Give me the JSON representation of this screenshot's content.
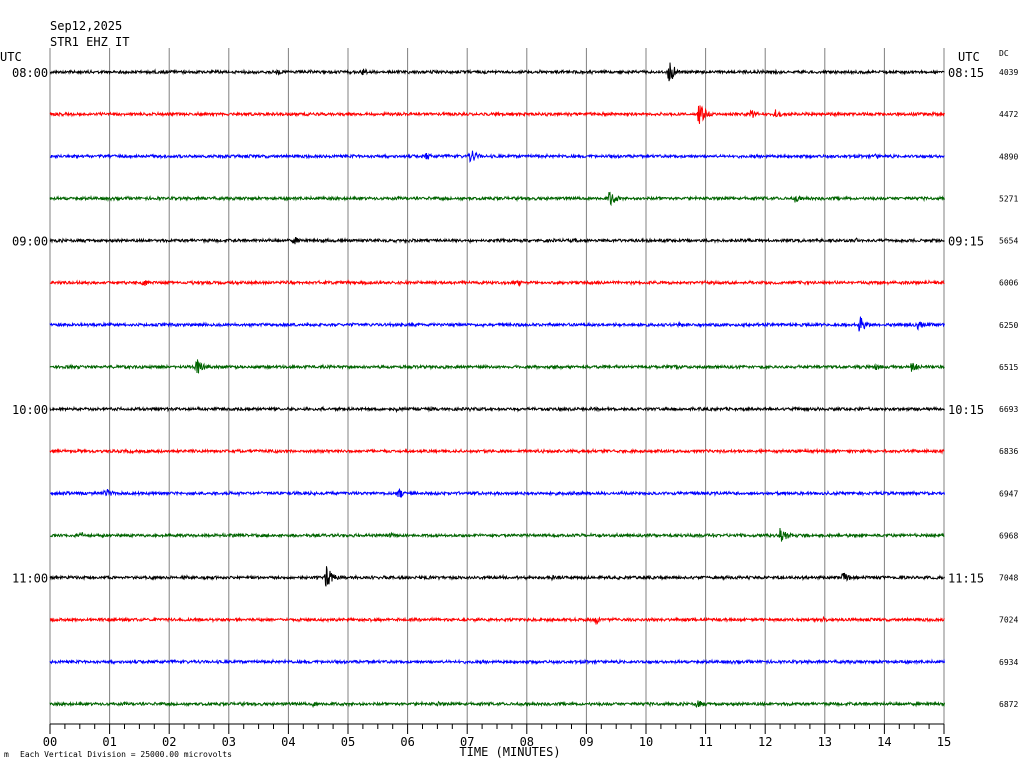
{
  "header": {
    "date": "Sep12,2025",
    "station": "STR1 EHZ IT"
  },
  "left_axis": {
    "zone": "UTC"
  },
  "right_axis": {
    "zone": "UTC",
    "dc_header": "DC"
  },
  "footer": {
    "scale_note": "Each Vertical Division = 25000.00 microvolts"
  },
  "colors": {
    "cycle": [
      "#000000",
      "#ff0000",
      "#0000ff",
      "#006400"
    ],
    "grid": "#808080"
  },
  "chart_data": {
    "type": "line",
    "title": "",
    "xlabel": "TIME (MINUTES)",
    "ylabel": "",
    "xlim": [
      0,
      15
    ],
    "x_ticks": [
      "00",
      "01",
      "02",
      "03",
      "04",
      "05",
      "06",
      "07",
      "08",
      "09",
      "10",
      "11",
      "12",
      "13",
      "14",
      "15"
    ],
    "x_minor_per_major": 4,
    "grid": true,
    "lines": [
      {
        "left": "08:00",
        "right": "08:15",
        "dc": "4039",
        "events": [
          {
            "t": 10.38,
            "a": 12
          },
          {
            "t": 5.25,
            "a": 4
          },
          {
            "t": 3.8,
            "a": 3
          }
        ]
      },
      {
        "left": "",
        "right": "",
        "dc": "4472",
        "events": [
          {
            "t": 10.88,
            "a": 13
          },
          {
            "t": 12.15,
            "a": 6
          },
          {
            "t": 11.75,
            "a": 5
          }
        ]
      },
      {
        "left": "",
        "right": "",
        "dc": "4890",
        "events": [
          {
            "t": 7.05,
            "a": 8
          },
          {
            "t": 6.3,
            "a": 4
          },
          {
            "t": 13.85,
            "a": 3
          }
        ]
      },
      {
        "left": "",
        "right": "",
        "dc": "5271",
        "events": [
          {
            "t": 9.38,
            "a": 9
          },
          {
            "t": 12.5,
            "a": 4
          },
          {
            "t": 1.8,
            "a": 2
          }
        ]
      },
      {
        "left": "09:00",
        "right": "09:15",
        "dc": "5654",
        "events": [
          {
            "t": 4.08,
            "a": 5
          },
          {
            "t": 13.5,
            "a": 3
          }
        ]
      },
      {
        "left": "",
        "right": "",
        "dc": "6006",
        "events": [
          {
            "t": 1.55,
            "a": 4
          },
          {
            "t": 7.85,
            "a": 3
          },
          {
            "t": 4.6,
            "a": 2
          }
        ]
      },
      {
        "left": "",
        "right": "",
        "dc": "6250",
        "events": [
          {
            "t": 13.58,
            "a": 9
          },
          {
            "t": 14.55,
            "a": 5
          },
          {
            "t": 10.55,
            "a": 3
          },
          {
            "t": 9.85,
            "a": 3
          }
        ]
      },
      {
        "left": "",
        "right": "",
        "dc": "6515",
        "events": [
          {
            "t": 2.45,
            "a": 9
          },
          {
            "t": 14.45,
            "a": 6
          },
          {
            "t": 13.85,
            "a": 4
          },
          {
            "t": 10.5,
            "a": 3
          }
        ]
      },
      {
        "left": "10:00",
        "right": "10:15",
        "dc": "6693",
        "events": [
          {
            "t": 5.8,
            "a": 3
          },
          {
            "t": 8.1,
            "a": 2
          }
        ]
      },
      {
        "left": "",
        "right": "",
        "dc": "6836",
        "events": [
          {
            "t": 6.6,
            "a": 2
          }
        ]
      },
      {
        "left": "",
        "right": "",
        "dc": "6947",
        "events": [
          {
            "t": 0.92,
            "a": 6
          },
          {
            "t": 5.85,
            "a": 6
          },
          {
            "t": 8.9,
            "a": 2
          }
        ]
      },
      {
        "left": "",
        "right": "",
        "dc": "6968",
        "events": [
          {
            "t": 12.25,
            "a": 10
          },
          {
            "t": 0.5,
            "a": 4
          },
          {
            "t": 5.7,
            "a": 3
          },
          {
            "t": 11.1,
            "a": 3
          }
        ]
      },
      {
        "left": "11:00",
        "right": "11:15",
        "dc": "7048",
        "events": [
          {
            "t": 4.62,
            "a": 13
          },
          {
            "t": 13.3,
            "a": 6
          },
          {
            "t": 8.4,
            "a": 3
          },
          {
            "t": 6.35,
            "a": 3
          }
        ]
      },
      {
        "left": "",
        "right": "",
        "dc": "7024",
        "events": [
          {
            "t": 9.15,
            "a": 5
          },
          {
            "t": 12.95,
            "a": 3
          }
        ]
      },
      {
        "left": "",
        "right": "",
        "dc": "6934",
        "events": [
          {
            "t": 4.4,
            "a": 2
          }
        ]
      },
      {
        "left": "",
        "right": "",
        "dc": "6872",
        "events": [
          {
            "t": 10.85,
            "a": 5
          },
          {
            "t": 4.4,
            "a": 4
          },
          {
            "t": 6.5,
            "a": 3
          },
          {
            "t": 12.4,
            "a": 2
          }
        ]
      }
    ]
  }
}
